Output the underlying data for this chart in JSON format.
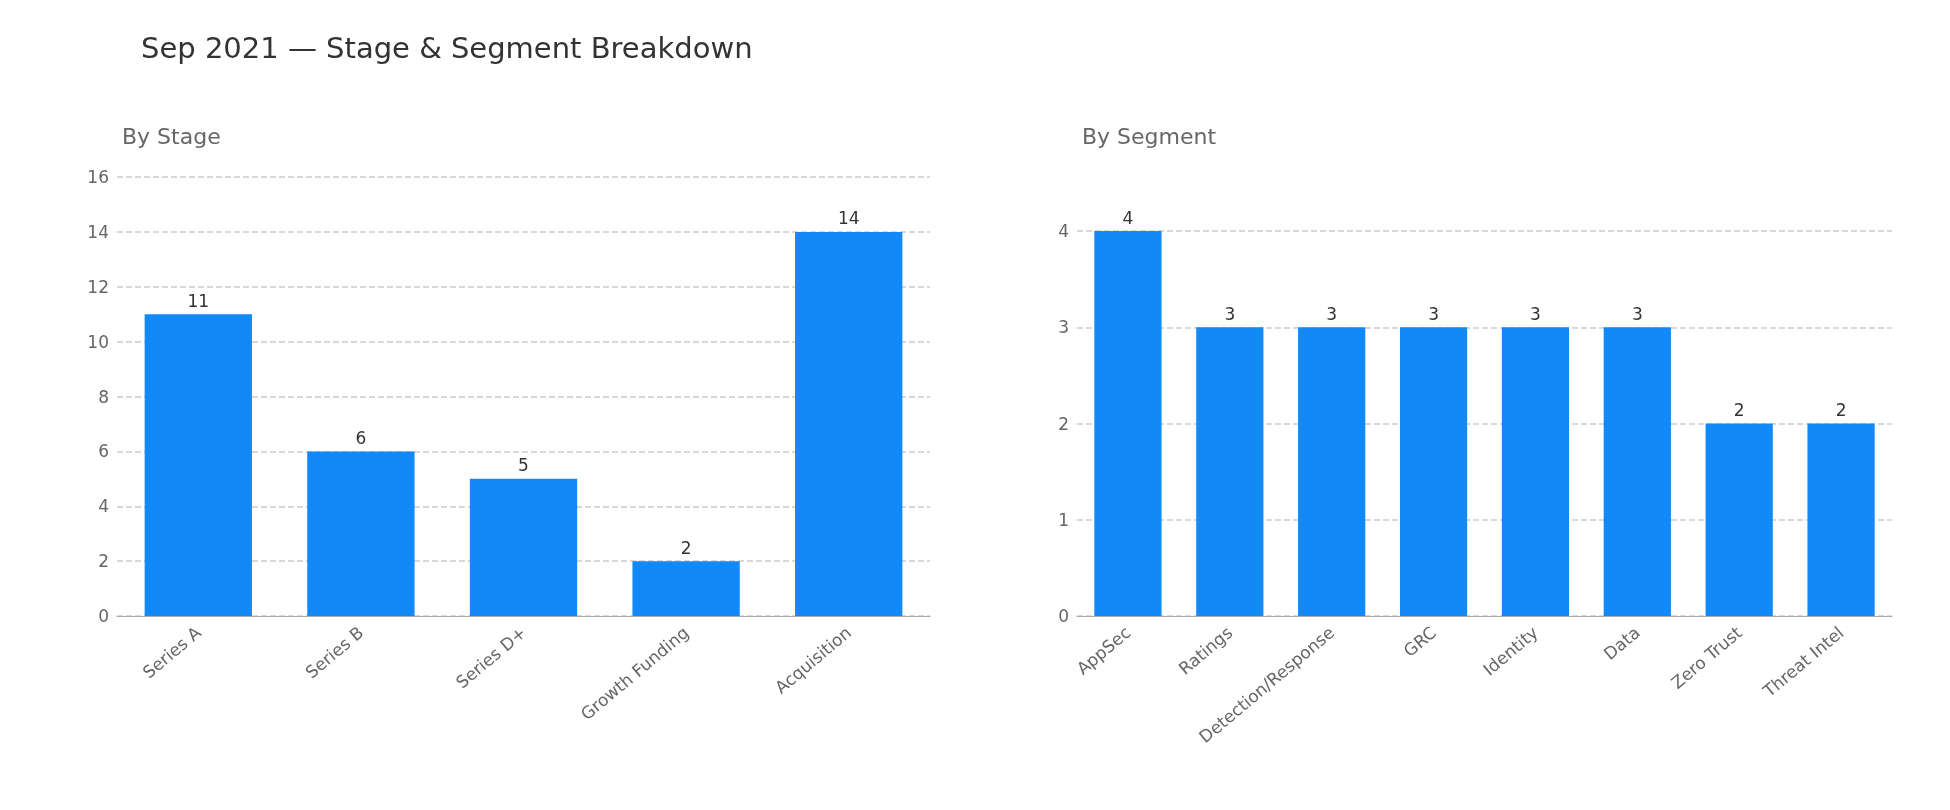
{
  "chart_data": [
    {
      "type": "bar",
      "title": "Sep 2021 — Stage & Segment Breakdown",
      "subtitle": "By Stage",
      "categories": [
        "Series A",
        "Series B",
        "Series D+",
        "Growth Funding",
        "Acquisition"
      ],
      "values": [
        11,
        6,
        5,
        2,
        14
      ],
      "color": "#1289f8",
      "ylim": [
        0,
        16
      ],
      "yticks": [
        0,
        2,
        4,
        6,
        8,
        10,
        12,
        14,
        16
      ],
      "grid": "y",
      "data_labels": true
    },
    {
      "type": "bar",
      "subtitle": "By Segment",
      "categories": [
        "AppSec",
        "Ratings",
        "Detection/Response",
        "GRC",
        "Identity",
        "Data",
        "Zero Trust",
        "Threat Intel"
      ],
      "values": [
        4,
        3,
        3,
        3,
        3,
        3,
        2,
        2
      ],
      "color": "#1289f8",
      "ylim": [
        0,
        4
      ],
      "yticks": [
        0,
        1,
        2,
        3,
        4
      ],
      "grid": "y",
      "data_labels": true
    }
  ]
}
